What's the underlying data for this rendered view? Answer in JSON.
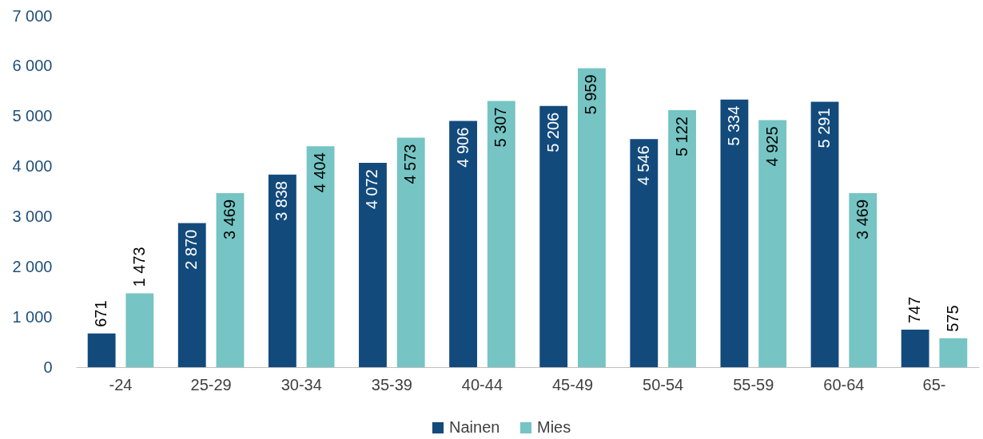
{
  "chart_data": {
    "type": "bar",
    "categories": [
      "-24",
      "25-29",
      "30-34",
      "35-39",
      "40-44",
      "45-49",
      "50-54",
      "55-59",
      "60-64",
      "65-"
    ],
    "series": [
      {
        "name": "Nainen",
        "color": "#134a7c",
        "values": [
          671,
          2870,
          3838,
          4072,
          4906,
          5206,
          4546,
          5334,
          5291,
          747
        ],
        "value_labels": [
          "671",
          "2 870",
          "3 838",
          "4 072",
          "4 906",
          "5 206",
          "4 546",
          "5 334",
          "5 291",
          "747"
        ]
      },
      {
        "name": "Mies",
        "color": "#76c4c4",
        "values": [
          1473,
          3469,
          4404,
          4573,
          5307,
          5959,
          5122,
          4925,
          3469,
          575
        ],
        "value_labels": [
          "1 473",
          "3 469",
          "4 404",
          "4 573",
          "5 307",
          "5 959",
          "5 122",
          "4 925",
          "3 469",
          "575"
        ]
      }
    ],
    "ylim": [
      0,
      7000
    ],
    "yticks": [
      {
        "value": 0,
        "label": "0"
      },
      {
        "value": 1000,
        "label": "1 000"
      },
      {
        "value": 2000,
        "label": "2 000"
      },
      {
        "value": 3000,
        "label": "3 000"
      },
      {
        "value": 4000,
        "label": "4 000"
      },
      {
        "value": 5000,
        "label": "5 000"
      },
      {
        "value": 6000,
        "label": "6 000"
      },
      {
        "value": 7000,
        "label": "7 000"
      }
    ],
    "grid": false,
    "legend": "bottom"
  }
}
